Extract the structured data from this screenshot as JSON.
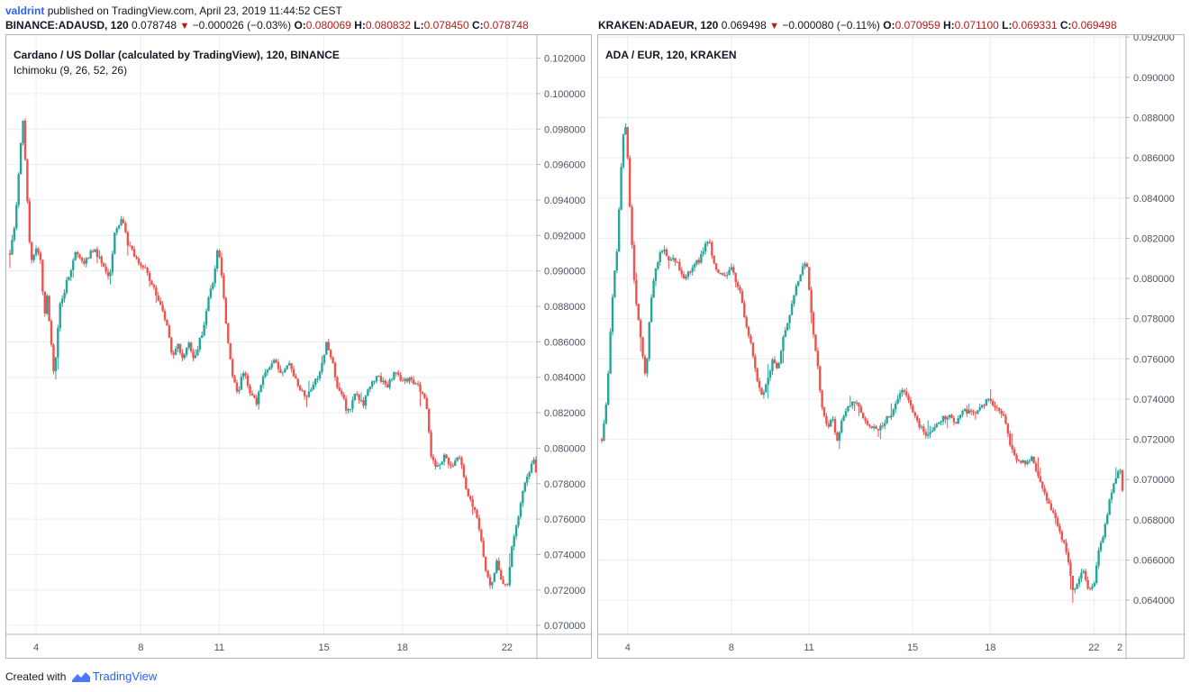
{
  "header": {
    "author": "valdrint",
    "published_text": "published on TradingView.com, April 23, 2019 11:44:52 CEST"
  },
  "footer": {
    "created_with": "Created with",
    "brand": "TradingView"
  },
  "colors": {
    "up": "#26a69a",
    "down": "#ef5350",
    "grid": "#e9eef3",
    "axis_text": "#4c525e",
    "border": "#b2b5be",
    "accent": "#2962ff"
  },
  "chart_data": [
    {
      "type": "candlestick",
      "ohlc_line": {
        "symbol": "BINANCE:ADAUSD, 120",
        "last": "0.078748",
        "change": "−0.000026 (−0.03%)",
        "open_label": "O:",
        "open": "0.080069",
        "high_label": "H:",
        "high": "0.080832",
        "low_label": "L:",
        "low": "0.078450",
        "close_label": "C:",
        "close": "0.078748"
      },
      "title": "Cardano / US Dollar (calculated by TradingView), 120, BINANCE",
      "indicator": "Ichimoku (9, 26, 52, 26)",
      "ylim": [
        0.0695,
        0.1033
      ],
      "y_ticks": [
        "0.070000",
        "0.072000",
        "0.074000",
        "0.076000",
        "0.078000",
        "0.080000",
        "0.082000",
        "0.084000",
        "0.086000",
        "0.088000",
        "0.090000",
        "0.092000",
        "0.094000",
        "0.096000",
        "0.098000",
        "0.100000",
        "0.102000"
      ],
      "x_range_days": [
        3.0,
        23.0
      ],
      "x_ticks": [
        {
          "day": 4,
          "label": "4"
        },
        {
          "day": 8,
          "label": "8"
        },
        {
          "day": 11,
          "label": "11"
        },
        {
          "day": 15,
          "label": "15"
        },
        {
          "day": 18,
          "label": "18"
        },
        {
          "day": 22,
          "label": "22"
        }
      ],
      "close_path": [
        [
          3.0,
          0.091
        ],
        [
          3.2,
          0.0925
        ],
        [
          3.4,
          0.097
        ],
        [
          3.5,
          0.0985
        ],
        [
          3.6,
          0.096
        ],
        [
          3.7,
          0.093
        ],
        [
          3.8,
          0.0905
        ],
        [
          4.0,
          0.0912
        ],
        [
          4.2,
          0.0905
        ],
        [
          4.3,
          0.087
        ],
        [
          4.4,
          0.089
        ],
        [
          4.6,
          0.0855
        ],
        [
          4.7,
          0.084
        ],
        [
          4.9,
          0.088
        ],
        [
          5.1,
          0.089
        ],
        [
          5.3,
          0.09
        ],
        [
          5.5,
          0.091
        ],
        [
          5.8,
          0.0905
        ],
        [
          6.2,
          0.0912
        ],
        [
          6.5,
          0.0905
        ],
        [
          6.8,
          0.0895
        ],
        [
          7.0,
          0.092
        ],
        [
          7.3,
          0.093
        ],
        [
          7.5,
          0.0915
        ],
        [
          7.8,
          0.0908
        ],
        [
          8.2,
          0.09
        ],
        [
          8.5,
          0.089
        ],
        [
          8.8,
          0.088
        ],
        [
          9.0,
          0.087
        ],
        [
          9.2,
          0.085
        ],
        [
          9.4,
          0.086
        ],
        [
          9.6,
          0.085
        ],
        [
          9.8,
          0.086
        ],
        [
          10.0,
          0.085
        ],
        [
          10.2,
          0.0858
        ],
        [
          10.4,
          0.0868
        ],
        [
          10.6,
          0.0885
        ],
        [
          10.8,
          0.0895
        ],
        [
          10.95,
          0.0915
        ],
        [
          11.1,
          0.0895
        ],
        [
          11.3,
          0.0865
        ],
        [
          11.5,
          0.084
        ],
        [
          11.7,
          0.083
        ],
        [
          11.9,
          0.0845
        ],
        [
          12.1,
          0.0835
        ],
        [
          12.4,
          0.0825
        ],
        [
          12.6,
          0.0835
        ],
        [
          12.8,
          0.0845
        ],
        [
          13.1,
          0.085
        ],
        [
          13.4,
          0.0842
        ],
        [
          13.7,
          0.0848
        ],
        [
          14.0,
          0.0835
        ],
        [
          14.3,
          0.0828
        ],
        [
          14.6,
          0.0835
        ],
        [
          14.9,
          0.0845
        ],
        [
          15.1,
          0.086
        ],
        [
          15.3,
          0.085
        ],
        [
          15.5,
          0.0835
        ],
        [
          15.7,
          0.083
        ],
        [
          15.9,
          0.082
        ],
        [
          16.2,
          0.083
        ],
        [
          16.5,
          0.0825
        ],
        [
          16.8,
          0.0838
        ],
        [
          17.1,
          0.084
        ],
        [
          17.4,
          0.0835
        ],
        [
          17.7,
          0.0843
        ],
        [
          18.0,
          0.0838
        ],
        [
          18.3,
          0.084
        ],
        [
          18.6,
          0.0835
        ],
        [
          18.9,
          0.0825
        ],
        [
          19.1,
          0.0795
        ],
        [
          19.3,
          0.079
        ],
        [
          19.6,
          0.0795
        ],
        [
          19.9,
          0.079
        ],
        [
          20.2,
          0.0795
        ],
        [
          20.4,
          0.078
        ],
        [
          20.6,
          0.077
        ],
        [
          20.8,
          0.0765
        ],
        [
          21.0,
          0.075
        ],
        [
          21.2,
          0.073
        ],
        [
          21.4,
          0.0722
        ],
        [
          21.6,
          0.0735
        ],
        [
          21.8,
          0.0725
        ],
        [
          22.0,
          0.0722
        ],
        [
          22.2,
          0.0745
        ],
        [
          22.4,
          0.076
        ],
        [
          22.6,
          0.0775
        ],
        [
          22.8,
          0.0785
        ],
        [
          23.0,
          0.0795
        ],
        [
          23.1,
          0.0787
        ]
      ]
    },
    {
      "type": "candlestick",
      "ohlc_line": {
        "symbol": "KRAKEN:ADAEUR, 120",
        "last": "0.069498",
        "change": "−0.000080 (−0.11%)",
        "open_label": "O:",
        "open": "0.070959",
        "high_label": "H:",
        "high": "0.071100",
        "low_label": "L:",
        "low": "0.069331",
        "close_label": "C:",
        "close": "0.069498"
      },
      "title": "ADA / EUR, 120, KRAKEN",
      "indicator": "",
      "ylim": [
        0.0623,
        0.0921
      ],
      "y_ticks": [
        "0.064000",
        "0.066000",
        "0.068000",
        "0.070000",
        "0.072000",
        "0.074000",
        "0.076000",
        "0.078000",
        "0.080000",
        "0.082000",
        "0.084000",
        "0.086000",
        "0.088000",
        "0.090000",
        "0.092000"
      ],
      "x_range_days": [
        3.0,
        23.1
      ],
      "x_ticks": [
        {
          "day": 4,
          "label": "4"
        },
        {
          "day": 8,
          "label": "8"
        },
        {
          "day": 11,
          "label": "11"
        },
        {
          "day": 15,
          "label": "15"
        },
        {
          "day": 18,
          "label": "18"
        },
        {
          "day": 22,
          "label": "22"
        },
        {
          "day": 23,
          "label": "2"
        }
      ],
      "close_path": [
        [
          3.0,
          0.072
        ],
        [
          3.2,
          0.074
        ],
        [
          3.4,
          0.079
        ],
        [
          3.6,
          0.0815
        ],
        [
          3.8,
          0.087
        ],
        [
          3.95,
          0.0875
        ],
        [
          4.1,
          0.083
        ],
        [
          4.3,
          0.079
        ],
        [
          4.5,
          0.077
        ],
        [
          4.7,
          0.075
        ],
        [
          4.9,
          0.079
        ],
        [
          5.1,
          0.0805
        ],
        [
          5.3,
          0.0815
        ],
        [
          5.6,
          0.081
        ],
        [
          5.9,
          0.0808
        ],
        [
          6.2,
          0.08
        ],
        [
          6.5,
          0.0805
        ],
        [
          6.8,
          0.081
        ],
        [
          7.1,
          0.082
        ],
        [
          7.4,
          0.0805
        ],
        [
          7.7,
          0.08
        ],
        [
          8.0,
          0.0805
        ],
        [
          8.3,
          0.0795
        ],
        [
          8.6,
          0.0775
        ],
        [
          8.8,
          0.0765
        ],
        [
          9.0,
          0.075
        ],
        [
          9.2,
          0.074
        ],
        [
          9.4,
          0.075
        ],
        [
          9.6,
          0.076
        ],
        [
          9.8,
          0.0755
        ],
        [
          10.0,
          0.077
        ],
        [
          10.3,
          0.0785
        ],
        [
          10.6,
          0.08
        ],
        [
          10.9,
          0.081
        ],
        [
          11.1,
          0.078
        ],
        [
          11.3,
          0.076
        ],
        [
          11.5,
          0.0735
        ],
        [
          11.7,
          0.0725
        ],
        [
          11.9,
          0.073
        ],
        [
          12.1,
          0.072
        ],
        [
          12.3,
          0.073
        ],
        [
          12.5,
          0.0735
        ],
        [
          12.8,
          0.074
        ],
        [
          13.1,
          0.073
        ],
        [
          13.4,
          0.0725
        ],
        [
          13.7,
          0.0725
        ],
        [
          14.0,
          0.073
        ],
        [
          14.3,
          0.0735
        ],
        [
          14.6,
          0.0745
        ],
        [
          14.9,
          0.0738
        ],
        [
          15.2,
          0.0728
        ],
        [
          15.5,
          0.0722
        ],
        [
          15.8,
          0.0725
        ],
        [
          16.1,
          0.073
        ],
        [
          16.4,
          0.0732
        ],
        [
          16.7,
          0.0728
        ],
        [
          17.0,
          0.0735
        ],
        [
          17.3,
          0.0732
        ],
        [
          17.6,
          0.0735
        ],
        [
          17.9,
          0.074
        ],
        [
          18.2,
          0.0735
        ],
        [
          18.5,
          0.0732
        ],
        [
          18.8,
          0.0715
        ],
        [
          19.0,
          0.071
        ],
        [
          19.3,
          0.0708
        ],
        [
          19.6,
          0.071
        ],
        [
          19.9,
          0.07
        ],
        [
          20.2,
          0.069
        ],
        [
          20.5,
          0.068
        ],
        [
          20.8,
          0.067
        ],
        [
          21.0,
          0.066
        ],
        [
          21.2,
          0.0645
        ],
        [
          21.4,
          0.065
        ],
        [
          21.6,
          0.0655
        ],
        [
          21.8,
          0.0645
        ],
        [
          22.0,
          0.0648
        ],
        [
          22.2,
          0.0665
        ],
        [
          22.4,
          0.0675
        ],
        [
          22.6,
          0.069
        ],
        [
          22.8,
          0.07
        ],
        [
          23.0,
          0.0708
        ],
        [
          23.1,
          0.0695
        ]
      ]
    }
  ]
}
